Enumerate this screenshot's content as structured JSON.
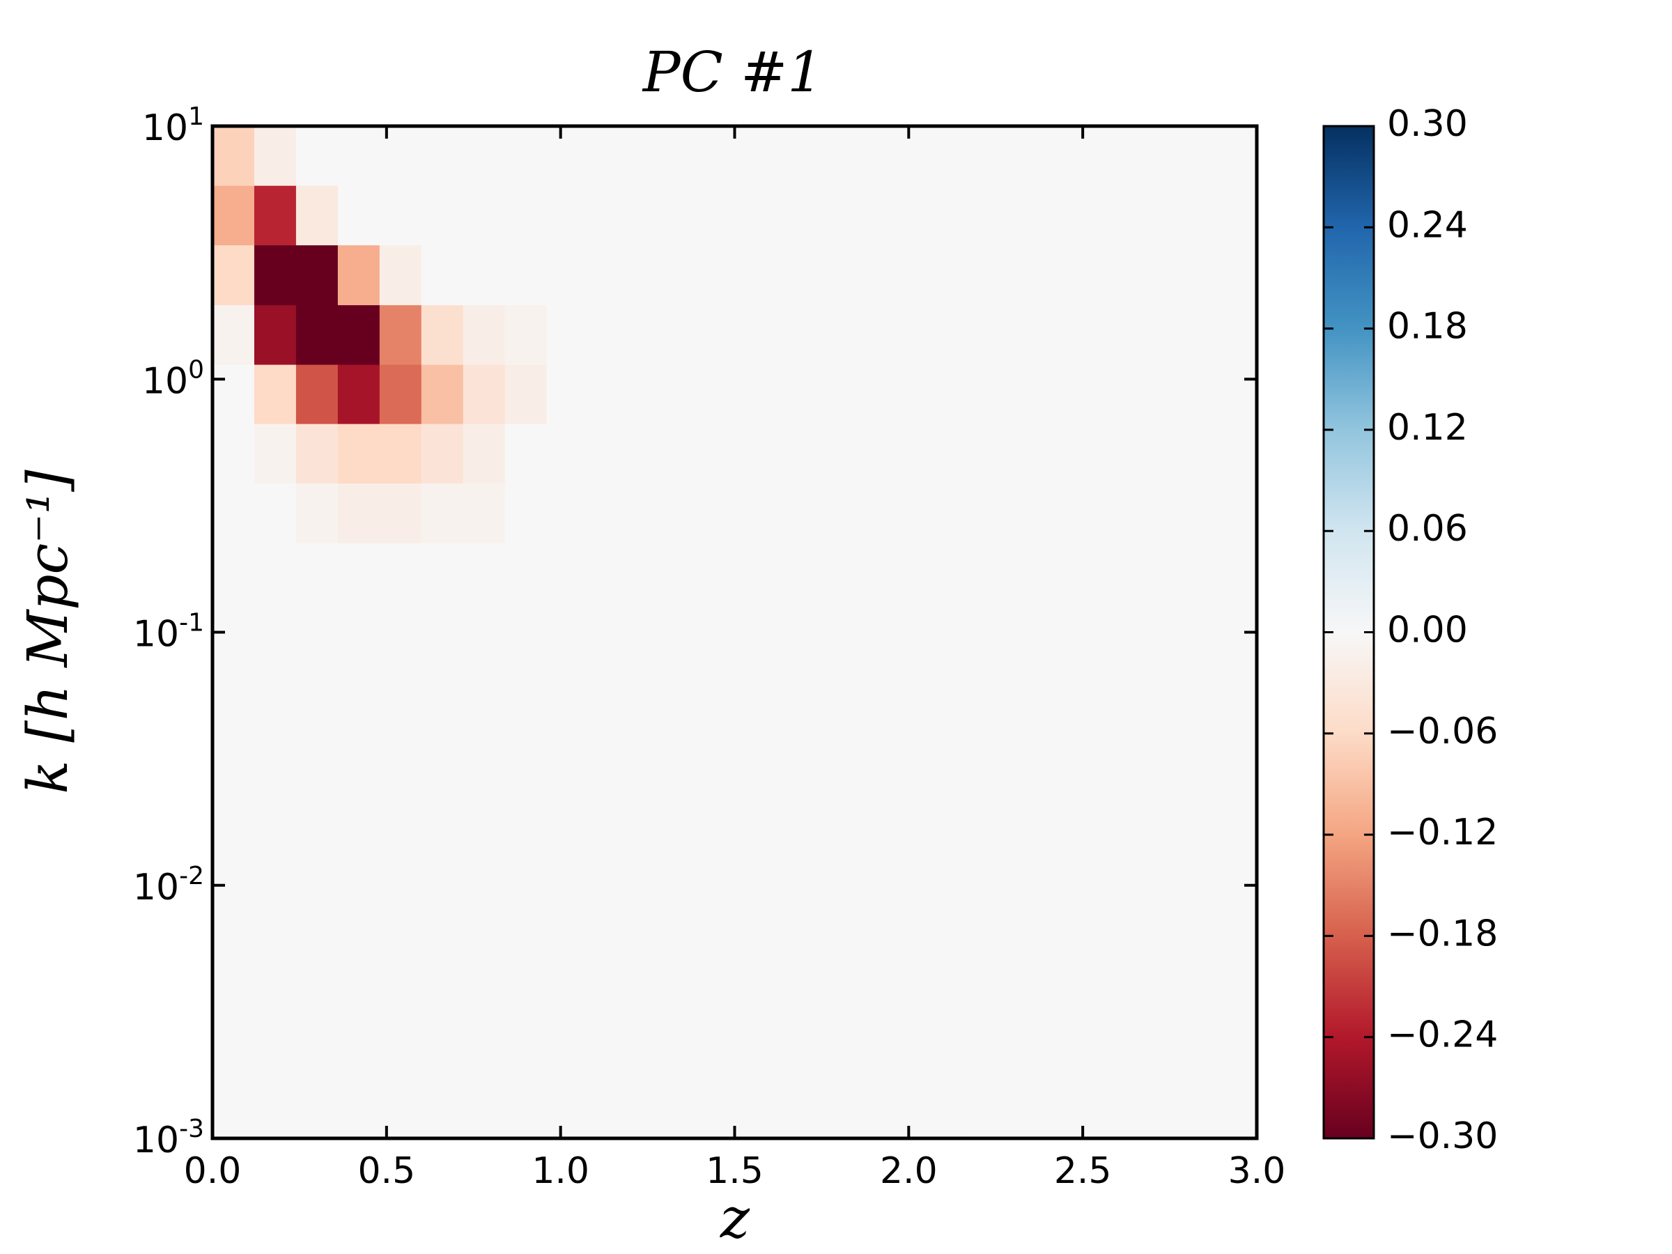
{
  "chart_data": {
    "type": "heatmap",
    "title": "PC #1",
    "xlabel": "z",
    "ylabel": "k [h Mpc⁻¹]",
    "xlim": [
      0,
      3
    ],
    "ylim": [
      0.001,
      10
    ],
    "yscale": "log",
    "xticks": [
      {
        "value": 0,
        "label": "0.0"
      },
      {
        "value": 0.5,
        "label": "0.5"
      },
      {
        "value": 1,
        "label": "1.0"
      },
      {
        "value": 1.5,
        "label": "1.5"
      },
      {
        "value": 2,
        "label": "2.0"
      },
      {
        "value": 2.5,
        "label": "2.5"
      },
      {
        "value": 3,
        "label": "3.0"
      }
    ],
    "yticks": [
      {
        "value": 10,
        "label": "10",
        "exponent": "1"
      },
      {
        "value": 1,
        "label": "10",
        "exponent": "0"
      },
      {
        "value": 0.1,
        "label": "10",
        "exponent": "-1"
      },
      {
        "value": 0.01,
        "label": "10",
        "exponent": "-2"
      },
      {
        "value": 0.001,
        "label": "10",
        "exponent": "-3"
      }
    ],
    "x_bins": [
      0,
      0.12,
      0.24,
      0.36,
      0.48,
      0.6,
      0.72,
      0.84,
      0.96,
      1.08,
      1.2,
      1.32,
      1.44,
      1.56,
      1.68,
      1.8,
      1.92,
      2.04,
      2.16,
      2.28,
      2.4,
      2.52,
      2.64,
      2.76,
      2.88,
      3.0
    ],
    "y_bins": [
      10,
      5.81,
      3.38,
      1.96,
      1.14,
      0.665,
      0.387,
      0.225,
      0.131,
      0.0761,
      0.0443,
      0.0258,
      0.015,
      0.00872,
      0.00507,
      0.00295,
      0.00172,
      0.001
    ],
    "values": [
      [
        -0.07,
        -0.02,
        0,
        0,
        0,
        0,
        0,
        0,
        0,
        0,
        0,
        0,
        0,
        0,
        0,
        0,
        0,
        0,
        0,
        0,
        0,
        0,
        0,
        0,
        0
      ],
      [
        -0.11,
        -0.23,
        -0.03,
        0,
        0,
        0,
        0,
        0,
        0,
        0,
        0,
        0,
        0,
        0,
        0,
        0,
        0,
        0,
        0,
        0,
        0,
        0,
        0,
        0,
        0
      ],
      [
        -0.06,
        -0.3,
        -0.3,
        -0.11,
        -0.02,
        0,
        0,
        0,
        0,
        0,
        0,
        0,
        0,
        0,
        0,
        0,
        0,
        0,
        0,
        0,
        0,
        0,
        0,
        0,
        0
      ],
      [
        -0.01,
        -0.26,
        -0.3,
        -0.3,
        -0.15,
        -0.05,
        -0.02,
        -0.01,
        0,
        0,
        0,
        0,
        0,
        0,
        0,
        0,
        0,
        0,
        0,
        0,
        0,
        0,
        0,
        0,
        0
      ],
      [
        0,
        -0.06,
        -0.19,
        -0.25,
        -0.17,
        -0.09,
        -0.04,
        -0.02,
        0,
        0,
        0,
        0,
        0,
        0,
        0,
        0,
        0,
        0,
        0,
        0,
        0,
        0,
        0,
        0,
        0
      ],
      [
        0,
        -0.01,
        -0.04,
        -0.06,
        -0.06,
        -0.04,
        -0.02,
        0,
        0,
        0,
        0,
        0,
        0,
        0,
        0,
        0,
        0,
        0,
        0,
        0,
        0,
        0,
        0,
        0,
        0
      ],
      [
        0,
        0,
        -0.01,
        -0.02,
        -0.02,
        -0.01,
        -0.01,
        0,
        0,
        0,
        0,
        0,
        0,
        0,
        0,
        0,
        0,
        0,
        0,
        0,
        0,
        0,
        0,
        0,
        0
      ],
      [
        0,
        0,
        0,
        0,
        0,
        0,
        0,
        0,
        0,
        0,
        0,
        0,
        0,
        0,
        0,
        0,
        0,
        0,
        0,
        0,
        0,
        0,
        0,
        0,
        0
      ],
      [
        0,
        0,
        0,
        0,
        0,
        0,
        0,
        0,
        0,
        0,
        0,
        0,
        0,
        0,
        0,
        0,
        0,
        0,
        0,
        0,
        0,
        0,
        0,
        0,
        0
      ],
      [
        0,
        0,
        0,
        0,
        0,
        0,
        0,
        0,
        0,
        0,
        0,
        0,
        0,
        0,
        0,
        0,
        0,
        0,
        0,
        0,
        0,
        0,
        0,
        0,
        0
      ],
      [
        0,
        0,
        0,
        0,
        0,
        0,
        0,
        0,
        0,
        0,
        0,
        0,
        0,
        0,
        0,
        0,
        0,
        0,
        0,
        0,
        0,
        0,
        0,
        0,
        0
      ],
      [
        0,
        0,
        0,
        0,
        0,
        0,
        0,
        0,
        0,
        0,
        0,
        0,
        0,
        0,
        0,
        0,
        0,
        0,
        0,
        0,
        0,
        0,
        0,
        0,
        0
      ],
      [
        0,
        0,
        0,
        0,
        0,
        0,
        0,
        0,
        0,
        0,
        0,
        0,
        0,
        0,
        0,
        0,
        0,
        0,
        0,
        0,
        0,
        0,
        0,
        0,
        0
      ],
      [
        0,
        0,
        0,
        0,
        0,
        0,
        0,
        0,
        0,
        0,
        0,
        0,
        0,
        0,
        0,
        0,
        0,
        0,
        0,
        0,
        0,
        0,
        0,
        0,
        0
      ],
      [
        0,
        0,
        0,
        0,
        0,
        0,
        0,
        0,
        0,
        0,
        0,
        0,
        0,
        0,
        0,
        0,
        0,
        0,
        0,
        0,
        0,
        0,
        0,
        0,
        0
      ],
      [
        0,
        0,
        0,
        0,
        0,
        0,
        0,
        0,
        0,
        0,
        0,
        0,
        0,
        0,
        0,
        0,
        0,
        0,
        0,
        0,
        0,
        0,
        0,
        0,
        0
      ],
      [
        0,
        0,
        0,
        0,
        0,
        0,
        0,
        0,
        0,
        0,
        0,
        0,
        0,
        0,
        0,
        0,
        0,
        0,
        0,
        0,
        0,
        0,
        0,
        0,
        0
      ]
    ],
    "clim": [
      -0.3,
      0.3
    ],
    "colormap": [
      "#67001f",
      "#b2182b",
      "#d6604d",
      "#f4a582",
      "#fddbc7",
      "#f7f7f7",
      "#d1e5f0",
      "#92c5de",
      "#4393c3",
      "#2166ac",
      "#053061"
    ],
    "cticks": [
      {
        "value": 0.3,
        "label": "0.30"
      },
      {
        "value": 0.24,
        "label": "0.24"
      },
      {
        "value": 0.18,
        "label": "0.18"
      },
      {
        "value": 0.12,
        "label": "0.12"
      },
      {
        "value": 0.06,
        "label": "0.06"
      },
      {
        "value": 0,
        "label": "0.00"
      },
      {
        "value": -0.06,
        "label": "−0.06"
      },
      {
        "value": -0.12,
        "label": "−0.12"
      },
      {
        "value": -0.18,
        "label": "−0.18"
      },
      {
        "value": -0.24,
        "label": "−0.24"
      },
      {
        "value": -0.3,
        "label": "−0.30"
      }
    ]
  }
}
